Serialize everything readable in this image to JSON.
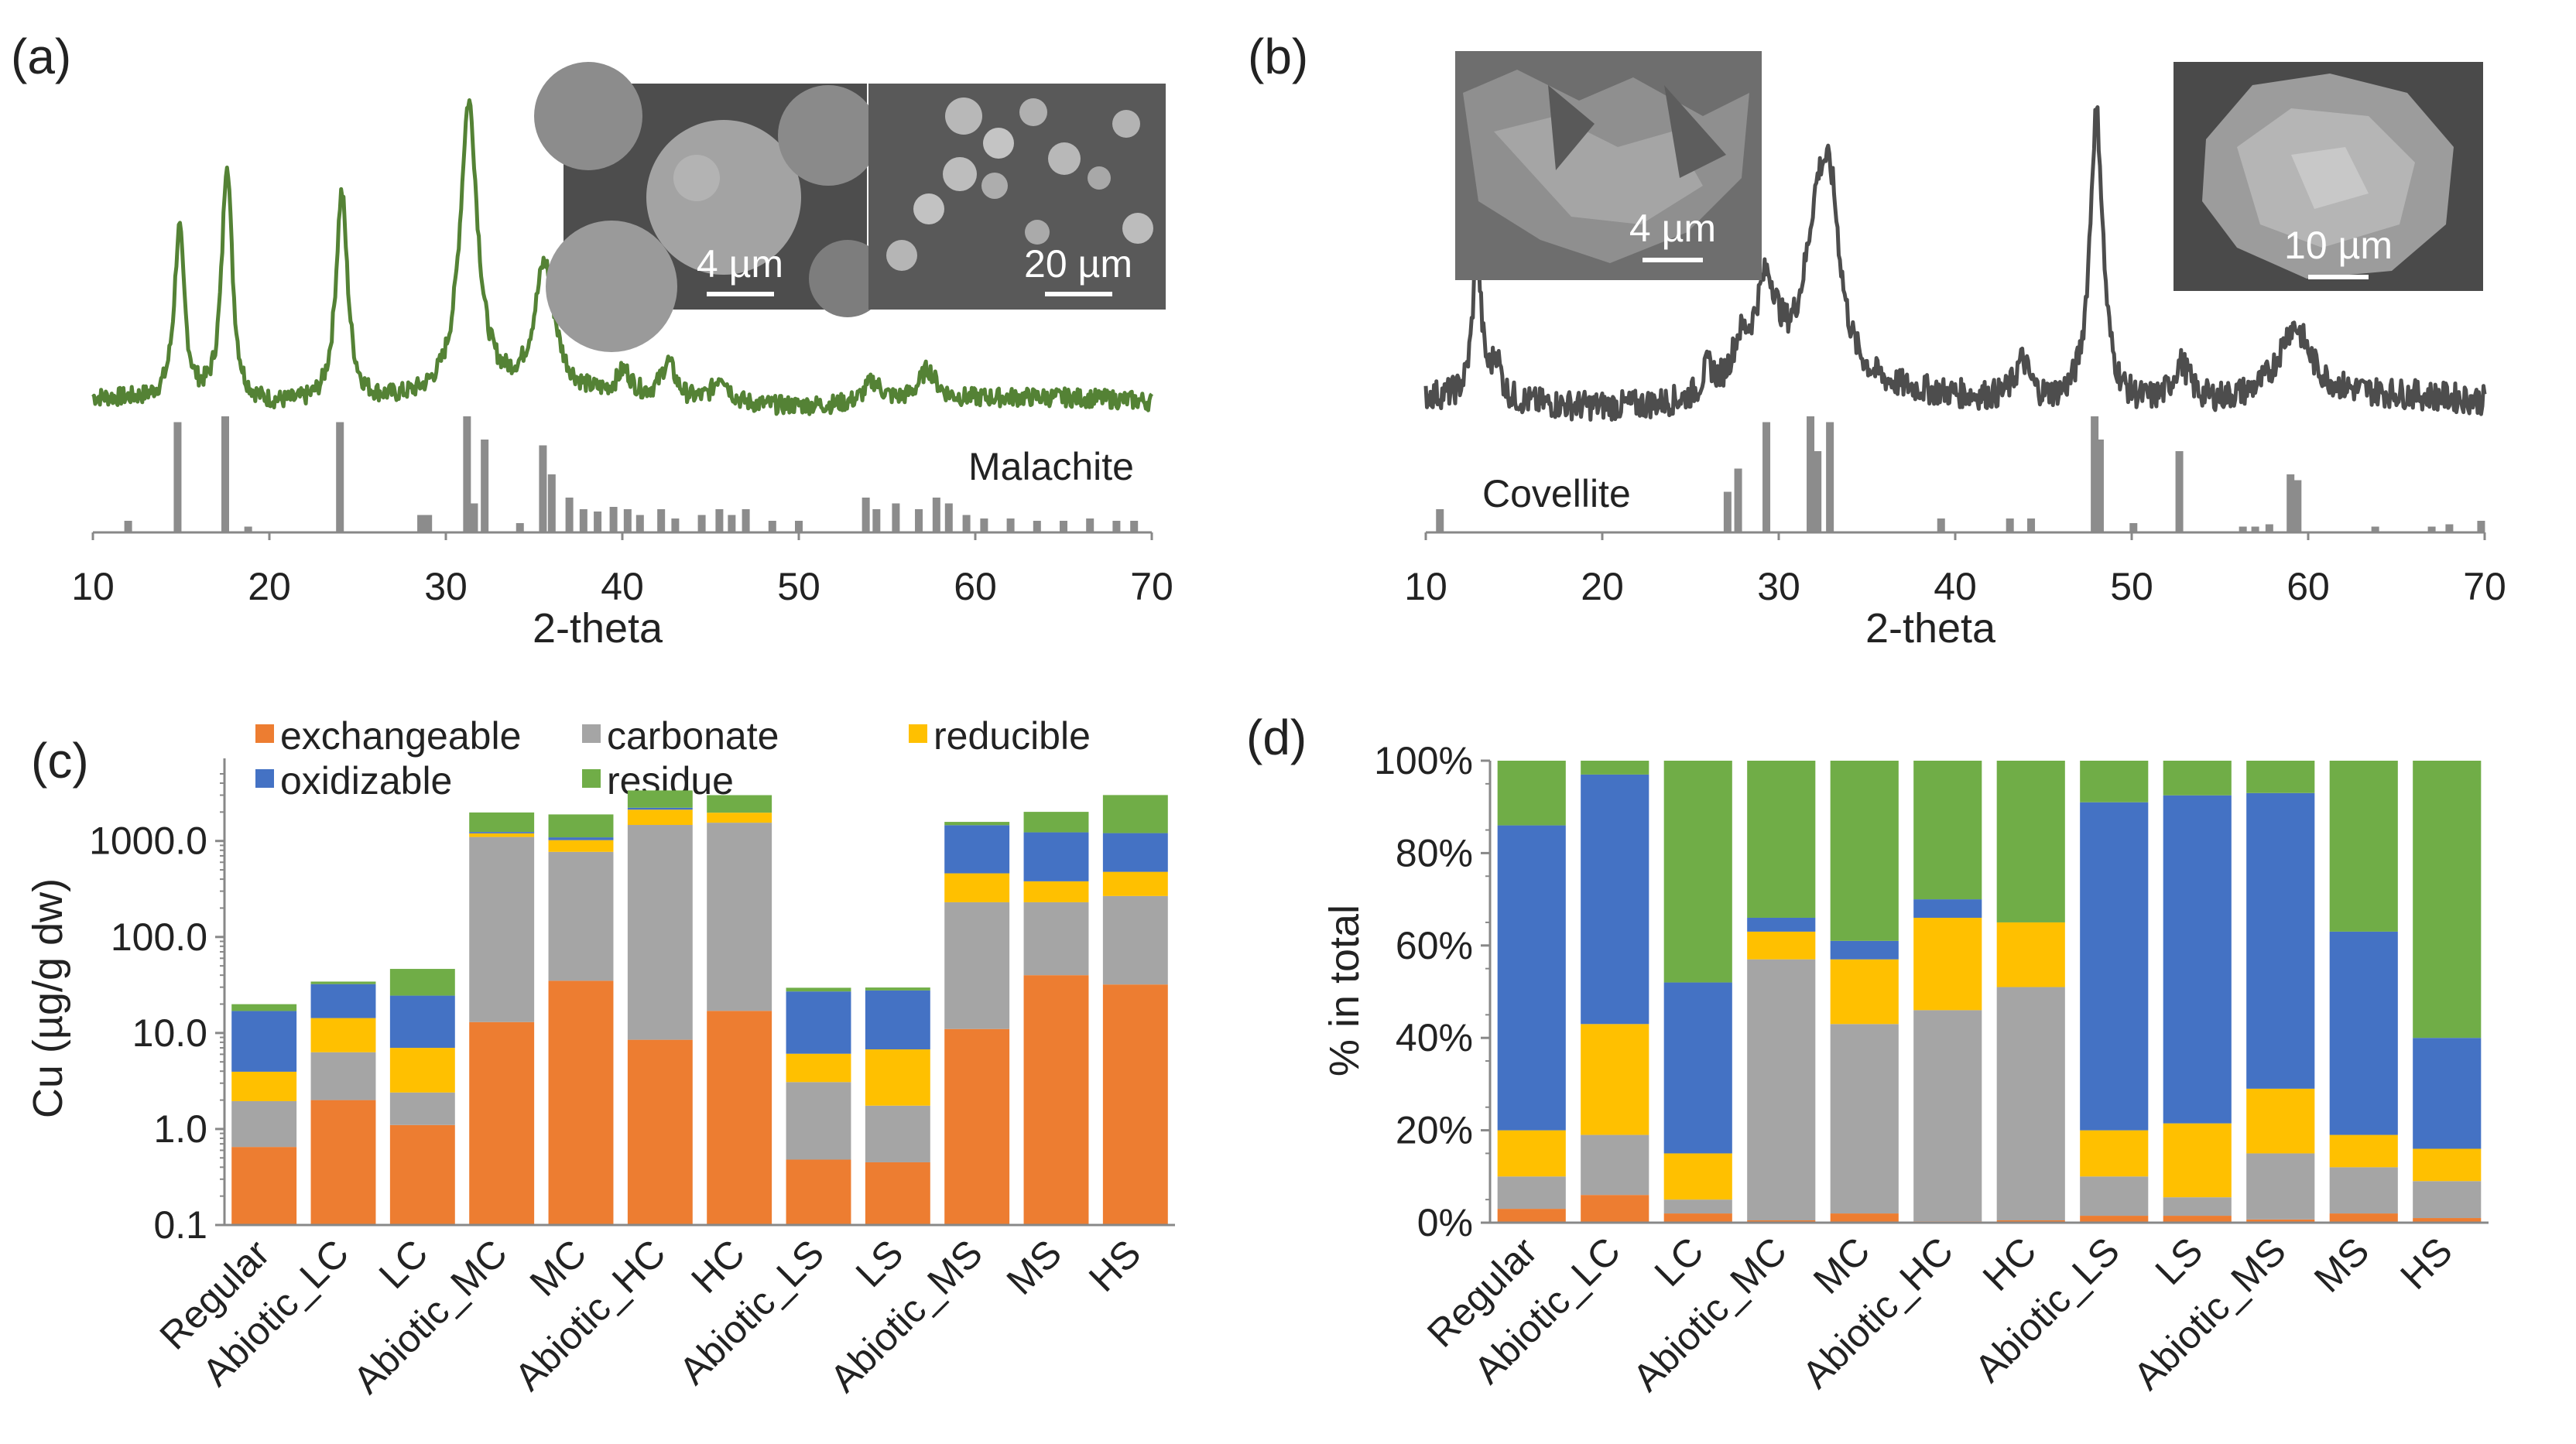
{
  "chart_data": [
    {
      "id": "a",
      "type": "line",
      "panel_label": "(a)",
      "xlabel": "2-theta",
      "xlim": [
        10,
        70
      ],
      "xticks": [
        10,
        20,
        30,
        40,
        50,
        60,
        70
      ],
      "series_color": "#548235",
      "reference_label": "Malachite",
      "peaks": [
        {
          "x": 14.9,
          "height": 0.55,
          "width": 0.35
        },
        {
          "x": 17.6,
          "height": 0.78,
          "width": 0.35
        },
        {
          "x": 24.1,
          "height": 0.68,
          "width": 0.4
        },
        {
          "x": 31.3,
          "height": 0.95,
          "width": 0.6
        },
        {
          "x": 35.6,
          "height": 0.42,
          "width": 0.7
        },
        {
          "x": 40.1,
          "height": 0.08,
          "width": 0.5
        },
        {
          "x": 42.6,
          "height": 0.12,
          "width": 0.5
        },
        {
          "x": 45.6,
          "height": 0.09,
          "width": 0.5
        },
        {
          "x": 54.2,
          "height": 0.07,
          "width": 0.6
        },
        {
          "x": 57.3,
          "height": 0.1,
          "width": 0.6
        }
      ],
      "reference_sticks": [
        {
          "x": 12.0,
          "h": 0.1
        },
        {
          "x": 14.8,
          "h": 0.95
        },
        {
          "x": 17.5,
          "h": 1.0
        },
        {
          "x": 18.8,
          "h": 0.05
        },
        {
          "x": 24.0,
          "h": 0.95
        },
        {
          "x": 28.6,
          "h": 0.15
        },
        {
          "x": 29.0,
          "h": 0.15
        },
        {
          "x": 31.2,
          "h": 1.0
        },
        {
          "x": 31.6,
          "h": 0.25
        },
        {
          "x": 32.2,
          "h": 0.8
        },
        {
          "x": 34.2,
          "h": 0.08
        },
        {
          "x": 35.5,
          "h": 0.75
        },
        {
          "x": 36.0,
          "h": 0.5
        },
        {
          "x": 37.0,
          "h": 0.3
        },
        {
          "x": 37.8,
          "h": 0.2
        },
        {
          "x": 38.6,
          "h": 0.18
        },
        {
          "x": 39.5,
          "h": 0.22
        },
        {
          "x": 40.3,
          "h": 0.2
        },
        {
          "x": 41.0,
          "h": 0.15
        },
        {
          "x": 42.2,
          "h": 0.2
        },
        {
          "x": 43.0,
          "h": 0.12
        },
        {
          "x": 44.5,
          "h": 0.15
        },
        {
          "x": 45.5,
          "h": 0.2
        },
        {
          "x": 46.2,
          "h": 0.15
        },
        {
          "x": 47.0,
          "h": 0.2
        },
        {
          "x": 48.5,
          "h": 0.1
        },
        {
          "x": 50.0,
          "h": 0.1
        },
        {
          "x": 53.8,
          "h": 0.3
        },
        {
          "x": 54.4,
          "h": 0.2
        },
        {
          "x": 55.5,
          "h": 0.25
        },
        {
          "x": 56.8,
          "h": 0.2
        },
        {
          "x": 57.8,
          "h": 0.3
        },
        {
          "x": 58.5,
          "h": 0.25
        },
        {
          "x": 59.5,
          "h": 0.15
        },
        {
          "x": 60.5,
          "h": 0.12
        },
        {
          "x": 62.0,
          "h": 0.12
        },
        {
          "x": 63.5,
          "h": 0.1
        },
        {
          "x": 65.0,
          "h": 0.1
        },
        {
          "x": 66.5,
          "h": 0.12
        },
        {
          "x": 68.0,
          "h": 0.1
        },
        {
          "x": 69.0,
          "h": 0.1
        }
      ],
      "insets": [
        {
          "scale_label": "4 µm",
          "kind": "spheres-large"
        },
        {
          "scale_label": "20 µm",
          "kind": "spheres-small"
        }
      ]
    },
    {
      "id": "b",
      "type": "line",
      "panel_label": "(b)",
      "xlabel": "2-theta",
      "xlim": [
        10,
        70
      ],
      "xticks": [
        10,
        20,
        30,
        40,
        50,
        60,
        70
      ],
      "series_color": "#4d4d4d",
      "reference_label": "Covellite",
      "peaks": [
        {
          "x": 12.9,
          "height": 0.45,
          "width": 0.3
        },
        {
          "x": 14.0,
          "height": 0.12,
          "width": 0.3
        },
        {
          "x": 26.0,
          "height": 0.08,
          "width": 0.4
        },
        {
          "x": 27.8,
          "height": 0.12,
          "width": 0.6
        },
        {
          "x": 29.3,
          "height": 0.32,
          "width": 0.8
        },
        {
          "x": 32.3,
          "height": 0.55,
          "width": 1.0
        },
        {
          "x": 33.0,
          "height": 0.3,
          "width": 0.6
        },
        {
          "x": 43.8,
          "height": 0.12,
          "width": 0.5
        },
        {
          "x": 48.0,
          "height": 0.9,
          "width": 0.45
        },
        {
          "x": 52.8,
          "height": 0.12,
          "width": 0.6
        },
        {
          "x": 59.2,
          "height": 0.22,
          "width": 1.1
        }
      ],
      "reference_sticks": [
        {
          "x": 10.8,
          "h": 0.2
        },
        {
          "x": 27.1,
          "h": 0.35
        },
        {
          "x": 27.7,
          "h": 0.55
        },
        {
          "x": 29.3,
          "h": 0.95
        },
        {
          "x": 31.8,
          "h": 1.0
        },
        {
          "x": 32.2,
          "h": 0.7
        },
        {
          "x": 32.9,
          "h": 0.95
        },
        {
          "x": 39.2,
          "h": 0.12
        },
        {
          "x": 43.1,
          "h": 0.12
        },
        {
          "x": 44.3,
          "h": 0.12
        },
        {
          "x": 47.9,
          "h": 1.0
        },
        {
          "x": 48.2,
          "h": 0.8
        },
        {
          "x": 50.1,
          "h": 0.08
        },
        {
          "x": 52.7,
          "h": 0.7
        },
        {
          "x": 56.3,
          "h": 0.05
        },
        {
          "x": 57.0,
          "h": 0.05
        },
        {
          "x": 57.8,
          "h": 0.07
        },
        {
          "x": 59.0,
          "h": 0.5
        },
        {
          "x": 59.4,
          "h": 0.45
        },
        {
          "x": 63.8,
          "h": 0.05
        },
        {
          "x": 67.0,
          "h": 0.05
        },
        {
          "x": 68.0,
          "h": 0.07
        },
        {
          "x": 69.8,
          "h": 0.1
        }
      ],
      "insets": [
        {
          "scale_label": "4 µm",
          "kind": "rough"
        },
        {
          "scale_label": "10 µm",
          "kind": "chunk"
        }
      ]
    },
    {
      "id": "c",
      "type": "bar",
      "stacked": true,
      "yscale": "log",
      "panel_label": "(c)",
      "ylabel": "Cu (µg/g dw)",
      "ylim": [
        0.1,
        5000
      ],
      "yticks": [
        "0.1",
        "1.0",
        "10.0",
        "100.0",
        "1000.0"
      ],
      "categories": [
        "Regular",
        "Abiotic_LC",
        "LC",
        "Abiotic_MC",
        "MC",
        "Abiotic_HC",
        "HC",
        "Abiotic_LS",
        "LS",
        "Abiotic_MS",
        "MS",
        "HS"
      ],
      "legend": [
        "exchangeable",
        "carbonate",
        "reducible",
        "oxidizable",
        "residue"
      ],
      "series": [
        {
          "name": "exchangeable",
          "color": "#ED7D31",
          "values": [
            0.65,
            2.0,
            1.1,
            13,
            35,
            8.5,
            17,
            0.48,
            0.45,
            11,
            40,
            32
          ]
        },
        {
          "name": "carbonate",
          "color": "#A5A5A5",
          "values": [
            1.3,
            4.3,
            1.3,
            1087,
            735,
            1460,
            1533,
            2.6,
            1.3,
            219,
            190,
            235
          ]
        },
        {
          "name": "reducible",
          "color": "#FFC000",
          "values": [
            2.0,
            8.0,
            4.6,
            100,
            250,
            650,
            420,
            3.0,
            5.0,
            230,
            150,
            210
          ]
        },
        {
          "name": "oxidizable",
          "color": "#4472C4",
          "values": [
            13,
            18,
            17.5,
            40,
            70,
            100,
            0,
            21,
            21,
            1000,
            850,
            730
          ]
        },
        {
          "name": "residue",
          "color": "#70AD47",
          "values": [
            3.0,
            2.0,
            22,
            740,
            800,
            1140,
            1030,
            2.5,
            2.0,
            120,
            780,
            1800
          ]
        }
      ]
    },
    {
      "id": "d",
      "type": "bar",
      "stacked": true,
      "panel_label": "(d)",
      "ylabel": "% in total",
      "ylim": [
        0,
        100
      ],
      "yticks": [
        "0%",
        "20%",
        "40%",
        "60%",
        "80%",
        "100%"
      ],
      "categories": [
        "Regular",
        "Abiotic_LC",
        "LC",
        "Abiotic_MC",
        "MC",
        "Abiotic_HC",
        "HC",
        "Abiotic_LS",
        "LS",
        "Abiotic_MS",
        "MS",
        "HS"
      ],
      "series": [
        {
          "name": "exchangeable",
          "color": "#ED7D31",
          "values": [
            3,
            6,
            2,
            0.5,
            2,
            0.3,
            0.5,
            1.5,
            1.5,
            0.7,
            2,
            1
          ]
        },
        {
          "name": "carbonate",
          "color": "#A5A5A5",
          "values": [
            7,
            13,
            3,
            56.5,
            41,
            45.7,
            50.5,
            8.5,
            4,
            14.3,
            10,
            8
          ]
        },
        {
          "name": "reducible",
          "color": "#FFC000",
          "values": [
            10,
            24,
            10,
            6,
            14,
            20,
            14,
            10,
            16,
            14,
            7,
            7
          ]
        },
        {
          "name": "oxidizable",
          "color": "#4472C4",
          "values": [
            66,
            54,
            37,
            3,
            4,
            4,
            0,
            71,
            71,
            64,
            44,
            24
          ]
        },
        {
          "name": "residue",
          "color": "#70AD47",
          "values": [
            14,
            3,
            48,
            34,
            39,
            30,
            35,
            9,
            7.5,
            7,
            37,
            60
          ]
        }
      ]
    }
  ]
}
